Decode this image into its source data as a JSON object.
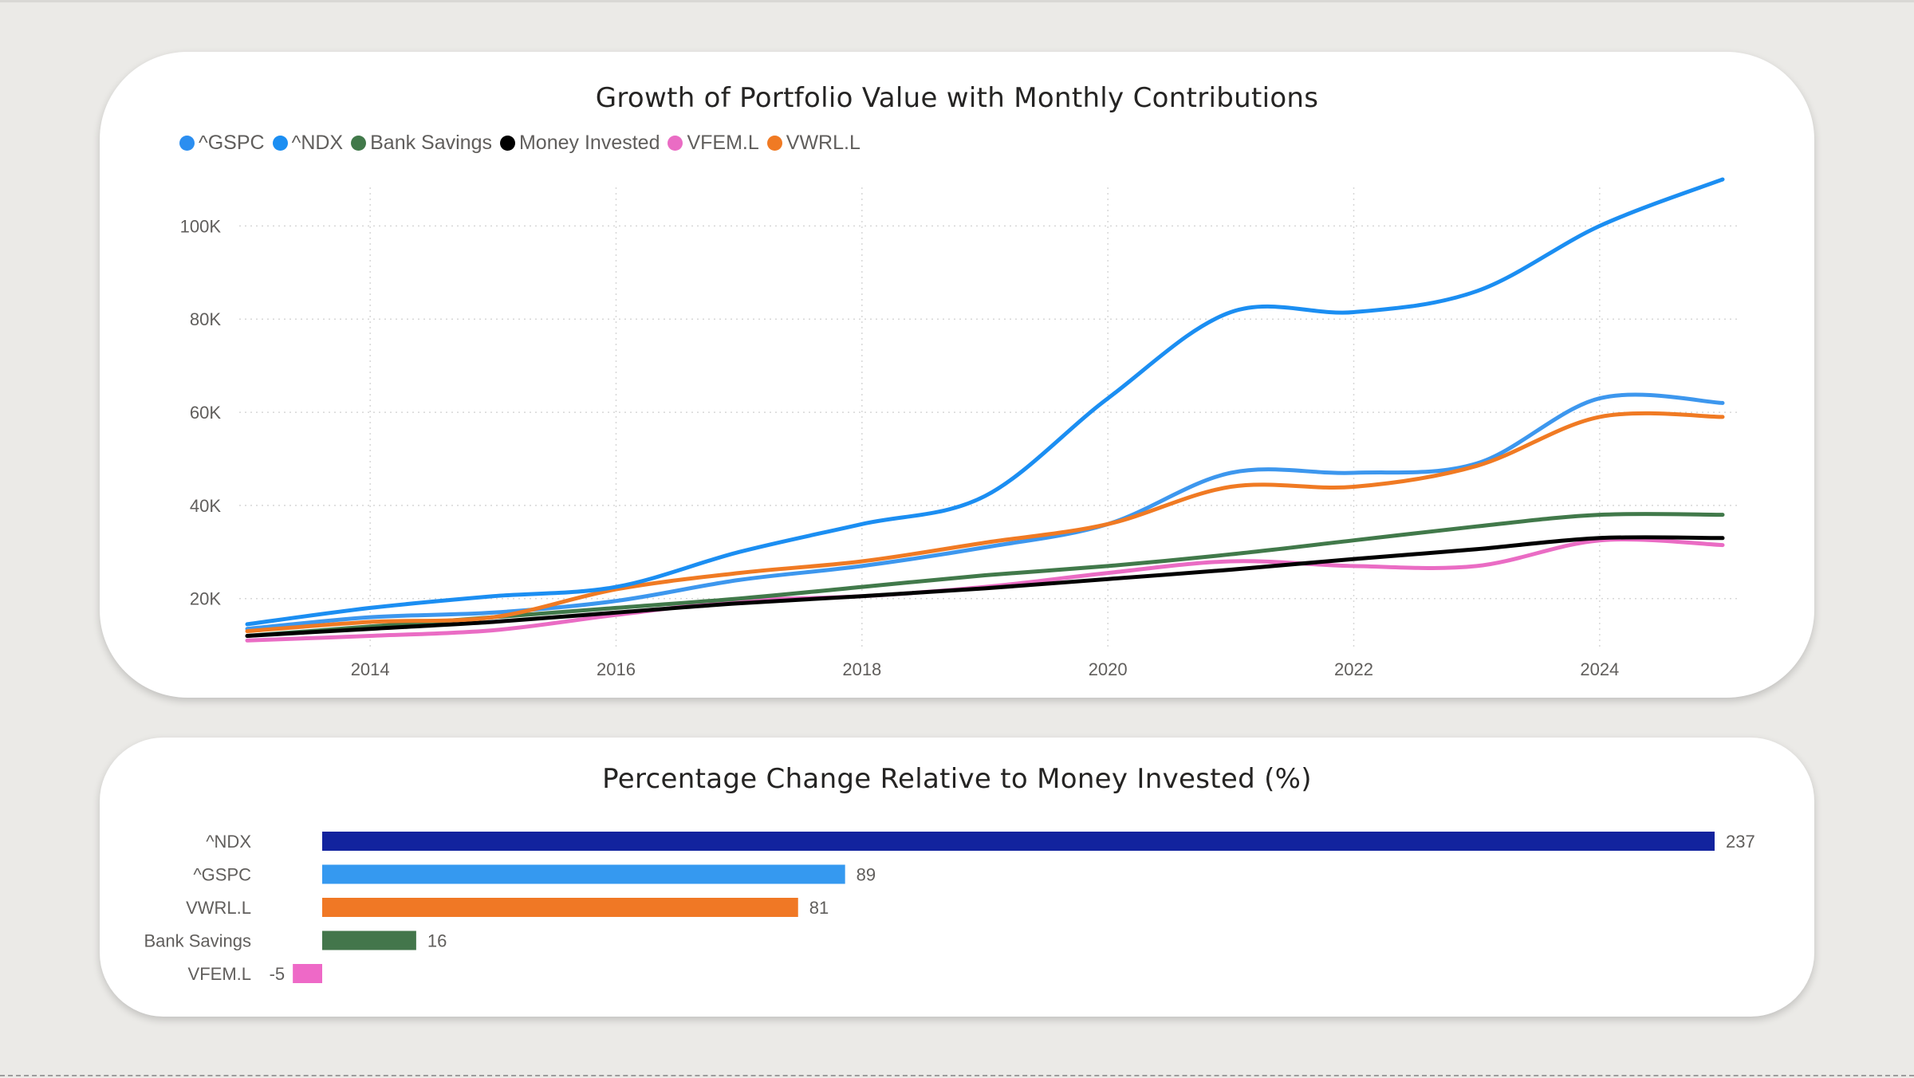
{
  "page": {
    "background": "#ebeae7"
  },
  "line_chart": {
    "title": "Growth of Portfolio Value with Monthly Contributions",
    "legend": [
      {
        "name": "^GSPC",
        "color": "#2b8ef0"
      },
      {
        "name": "^NDX",
        "color": "#1b8ef2"
      },
      {
        "name": "Bank Savings",
        "color": "#41794a"
      },
      {
        "name": "Money Invested",
        "color": "#000000"
      },
      {
        "name": "VFEM.L",
        "color": "#ea6cc4"
      },
      {
        "name": "VWRL.L",
        "color": "#f07a23"
      }
    ]
  },
  "bar_chart": {
    "title": "Percentage Change Relative to Money Invested (%)"
  },
  "chart_data": [
    {
      "type": "line",
      "title": "Growth of Portfolio Value with Monthly Contributions",
      "xlabel": "",
      "ylabel": "",
      "xlim": [
        2013,
        2025
      ],
      "ylim": [
        9000,
        110000
      ],
      "x_ticks": [
        "2014",
        "2016",
        "2018",
        "2020",
        "2022",
        "2024"
      ],
      "y_ticks": [
        "20K",
        "40K",
        "60K",
        "80K",
        "100K"
      ],
      "grid": true,
      "legend_position": "top-left",
      "series": [
        {
          "name": "^GSPC",
          "color": "#3d97ee",
          "x": [
            2013,
            2014,
            2015,
            2016,
            2017,
            2018,
            2019,
            2020,
            2021,
            2022,
            2023,
            2024,
            2025
          ],
          "y": [
            13500,
            16000,
            17000,
            19500,
            24000,
            27000,
            31000,
            36000,
            47000,
            47000,
            49000,
            63000,
            62000
          ]
        },
        {
          "name": "^NDX",
          "color": "#1b8ef2",
          "x": [
            2013,
            2014,
            2015,
            2016,
            2017,
            2018,
            2019,
            2020,
            2021,
            2022,
            2023,
            2024,
            2025
          ],
          "y": [
            14500,
            18000,
            20500,
            22500,
            30000,
            36000,
            42000,
            63000,
            81500,
            81500,
            86000,
            100000,
            110000
          ]
        },
        {
          "name": "Bank Savings",
          "color": "#41794a",
          "x": [
            2013,
            2014,
            2015,
            2016,
            2017,
            2018,
            2019,
            2020,
            2021,
            2022,
            2023,
            2024,
            2025
          ],
          "y": [
            12000,
            14000,
            16000,
            18000,
            20000,
            22500,
            25000,
            27000,
            29500,
            32500,
            35500,
            38000,
            38000
          ]
        },
        {
          "name": "Money Invested",
          "color": "#000000",
          "x": [
            2013,
            2014,
            2015,
            2016,
            2017,
            2018,
            2019,
            2020,
            2021,
            2022,
            2023,
            2024,
            2025
          ],
          "y": [
            12000,
            13500,
            15000,
            17000,
            19000,
            20500,
            22200,
            24200,
            26200,
            28500,
            30600,
            33000,
            33000
          ]
        },
        {
          "name": "VFEM.L",
          "color": "#ea6cc4",
          "x": [
            2013,
            2014,
            2015,
            2016,
            2017,
            2018,
            2019,
            2020,
            2021,
            2022,
            2023,
            2024,
            2025
          ],
          "y": [
            11000,
            12000,
            13200,
            16500,
            19500,
            20500,
            22500,
            25500,
            28000,
            27000,
            27000,
            32500,
            31500
          ]
        },
        {
          "name": "VWRL.L",
          "color": "#f07a23",
          "x": [
            2013,
            2014,
            2015,
            2016,
            2017,
            2018,
            2019,
            2020,
            2021,
            2022,
            2023,
            2024,
            2025
          ],
          "y": [
            13000,
            15000,
            16000,
            22000,
            25500,
            28000,
            32000,
            36000,
            44000,
            44000,
            48500,
            59000,
            59000
          ]
        }
      ]
    },
    {
      "type": "bar",
      "orientation": "horizontal",
      "title": "Percentage Change Relative to Money Invested (%)",
      "xlim": [
        -5,
        237
      ],
      "categories": [
        "^NDX",
        "^GSPC",
        "VWRL.L",
        "Bank Savings",
        "VFEM.L"
      ],
      "values": [
        237,
        89,
        81,
        16,
        -5
      ],
      "value_labels": [
        "237",
        "89",
        "81",
        "16",
        "-5"
      ],
      "colors": [
        "#12239e",
        "#3599f0",
        "#f07825",
        "#43764b",
        "#ee69c7"
      ]
    }
  ]
}
